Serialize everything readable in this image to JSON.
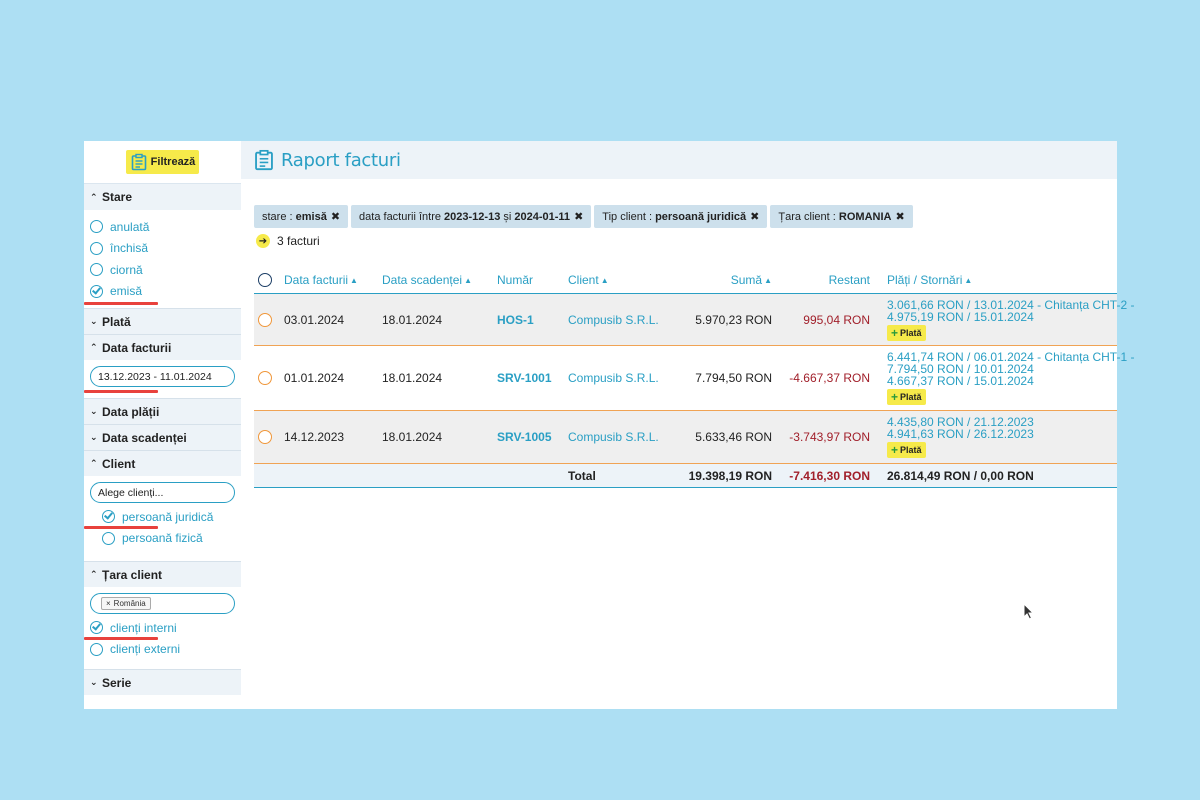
{
  "sidebar": {
    "filter_label": "Filtrează",
    "stare": {
      "title": "Stare",
      "options": [
        {
          "label": "anulată",
          "checked": false
        },
        {
          "label": "închisă",
          "checked": false
        },
        {
          "label": "ciornă",
          "checked": false
        },
        {
          "label": "emisă",
          "checked": true
        }
      ]
    },
    "plata_title": "Plată",
    "data_facturii": {
      "title": "Data facturii",
      "value": "13.12.2023 - 11.01.2024"
    },
    "data_platii_title": "Data plății",
    "data_scadentei_title": "Data scadenței",
    "client": {
      "title": "Client",
      "placeholder": "Alege clienți...",
      "options": [
        {
          "label": "persoană juridică",
          "checked": true
        },
        {
          "label": "persoană fizică",
          "checked": false
        }
      ]
    },
    "tara_client": {
      "title": "Țara client",
      "tag": "România",
      "options": [
        {
          "label": "clienți interni",
          "checked": true
        },
        {
          "label": "clienți externi",
          "checked": false
        }
      ]
    },
    "serie_title": "Serie"
  },
  "main": {
    "title": "Raport facturi",
    "chips": [
      {
        "prefix": "stare : ",
        "bold": "emisă"
      },
      {
        "prefix": "data facturii între ",
        "bold": "2023-12-13",
        "mid": " și ",
        "bold2": "2024-01-11"
      },
      {
        "prefix": "Tip client : ",
        "bold": "persoană juridică"
      },
      {
        "prefix": "Țara client : ",
        "bold": "ROMANIA"
      }
    ],
    "count_label": "3 facturi",
    "columns": {
      "data_facturii": "Data facturii",
      "data_scadentei": "Data scadenței",
      "numar": "Număr",
      "client": "Client",
      "suma": "Sumă",
      "restant": "Restant",
      "plati": "Plăți / Stornări"
    },
    "rows": [
      {
        "data": "03.01.2024",
        "scadenta": "18.01.2024",
        "numar": "HOS-1",
        "client": "Compusib S.R.L.",
        "suma": "5.970,23 RON",
        "restant": "995,04 RON",
        "plati": [
          "3.061,66 RON / 13.01.2024 - Chitanța CHT-2 -",
          "4.975,19 RON / 15.01.2024"
        ],
        "plata_label": "Plată"
      },
      {
        "data": "01.01.2024",
        "scadenta": "18.01.2024",
        "numar": "SRV-1001",
        "client": "Compusib S.R.L.",
        "suma": "7.794,50 RON",
        "restant": "-4.667,37 RON",
        "plati": [
          "6.441,74 RON / 06.01.2024 - Chitanța CHT-1 -",
          "7.794,50 RON / 10.01.2024",
          "4.667,37 RON / 15.01.2024"
        ],
        "plata_label": "Plată"
      },
      {
        "data": "14.12.2023",
        "scadenta": "18.01.2024",
        "numar": "SRV-1005",
        "client": "Compusib S.R.L.",
        "suma": "5.633,46 RON",
        "restant": "-3.743,97 RON",
        "plati": [
          "4.435,80 RON / 21.12.2023",
          "4.941,63 RON / 26.12.2023"
        ],
        "plata_label": "Plată"
      }
    ],
    "total": {
      "label": "Total",
      "suma": "19.398,19 RON",
      "restant": "-7.416,30 RON",
      "plati": "26.814,49 RON / 0,00 RON"
    }
  },
  "colors": {
    "accent": "#2a9fc4",
    "highlight": "#f6ea4a",
    "negative": "#a11f2a",
    "background": "#addff3"
  }
}
